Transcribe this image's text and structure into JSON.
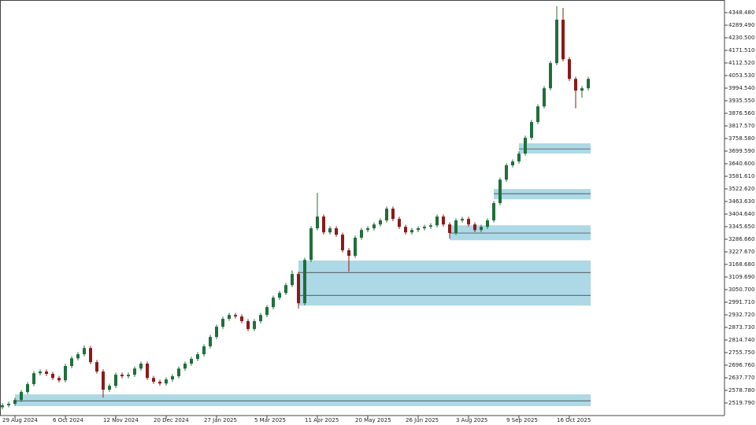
{
  "chart_data": {
    "type": "candlestick",
    "colors": {
      "up": "#1f6f3a",
      "down": "#8b1a1a",
      "zone": "#add8e6",
      "zone_line": "#333333"
    },
    "ylim": [
      2460.8,
      4407.47
    ],
    "yticks": [
      {
        "value": 4348.48,
        "label": "4348.480"
      },
      {
        "value": 4289.49,
        "label": "4289.490"
      },
      {
        "value": 4230.5,
        "label": "4230.500"
      },
      {
        "value": 4171.51,
        "label": "4171.510"
      },
      {
        "value": 4112.52,
        "label": "4112.520"
      },
      {
        "value": 4053.53,
        "label": "4053.530"
      },
      {
        "value": 3994.54,
        "label": "3994.540"
      },
      {
        "value": 3935.55,
        "label": "3935.550"
      },
      {
        "value": 3876.56,
        "label": "3876.560"
      },
      {
        "value": 3817.57,
        "label": "3817.570"
      },
      {
        "value": 3758.58,
        "label": "3758.580"
      },
      {
        "value": 3699.59,
        "label": "3699.590"
      },
      {
        "value": 3640.6,
        "label": "3640.600"
      },
      {
        "value": 3581.61,
        "label": "3581.610"
      },
      {
        "value": 3522.62,
        "label": "3522.620"
      },
      {
        "value": 3463.63,
        "label": "3463.630"
      },
      {
        "value": 3404.64,
        "label": "3404.640"
      },
      {
        "value": 3345.65,
        "label": "3345.650"
      },
      {
        "value": 3286.66,
        "label": "3286.660"
      },
      {
        "value": 3227.67,
        "label": "3227.670"
      },
      {
        "value": 3168.68,
        "label": "3168.680"
      },
      {
        "value": 3109.69,
        "label": "3109.690"
      },
      {
        "value": 3050.7,
        "label": "3050.700"
      },
      {
        "value": 2991.71,
        "label": "2991.710"
      },
      {
        "value": 2932.72,
        "label": "2932.720"
      },
      {
        "value": 2873.73,
        "label": "2873.730"
      },
      {
        "value": 2814.74,
        "label": "2814.740"
      },
      {
        "value": 2755.75,
        "label": "2755.750"
      },
      {
        "value": 2696.76,
        "label": "2696.760"
      },
      {
        "value": 2637.77,
        "label": "2637.770"
      },
      {
        "value": 2578.78,
        "label": "2578.780"
      },
      {
        "value": 2519.79,
        "label": "2519.790"
      }
    ],
    "categories": [
      null,
      null,
      "29 Aug 2024",
      null,
      null,
      null,
      null,
      null,
      null,
      null,
      "6 Oct 2024",
      null,
      null,
      null,
      null,
      null,
      null,
      null,
      "12 Nov 2024",
      null,
      null,
      null,
      null,
      null,
      null,
      null,
      "20 Dec 2024",
      null,
      null,
      null,
      null,
      null,
      null,
      null,
      "27 Jan 2025",
      null,
      null,
      null,
      null,
      null,
      null,
      null,
      "5 Mar 2025",
      null,
      null,
      null,
      null,
      null,
      null,
      null,
      "11 Apr 2025",
      null,
      null,
      null,
      null,
      null,
      null,
      null,
      "20 May 2025",
      null,
      null,
      null,
      null,
      null,
      null,
      null,
      "26 Jun 2025",
      null,
      null,
      null,
      null,
      null,
      null,
      null,
      "3 Aug 2025",
      null,
      null,
      null,
      null,
      null,
      null,
      null,
      "9 Sep 2025",
      null,
      null,
      null,
      null,
      null,
      null,
      null,
      "16 Oct 2025",
      null,
      null,
      null
    ],
    "open": [
      2500,
      2509,
      2516,
      2534,
      2571,
      2608,
      2659,
      2667,
      2656,
      2637,
      2626,
      2693,
      2729,
      2748,
      2777,
      2711,
      2667,
      2582,
      2600,
      2652,
      2645,
      2652,
      2681,
      2704,
      2637,
      2619,
      2611,
      2630,
      2645,
      2681,
      2704,
      2726,
      2748,
      2785,
      2829,
      2877,
      2914,
      2932,
      2925,
      2903,
      2866,
      2903,
      2932,
      2969,
      3013,
      3035,
      3072,
      3124,
      2987,
      3190,
      3338,
      3393,
      3319,
      3338,
      3308,
      3235,
      3209,
      3294,
      3330,
      3338,
      3356,
      3375,
      3430,
      3382,
      3345,
      3319,
      3330,
      3338,
      3345,
      3352,
      3393,
      3356,
      3316,
      3375,
      3382,
      3356,
      3330,
      3345,
      3375,
      3456,
      3566,
      3633,
      3651,
      3688,
      3762,
      3836,
      3909,
      3994,
      4112,
      4315,
      4130,
      4038,
      3983,
      3994
    ],
    "high": [
      2519,
      2526,
      2544,
      2581,
      2618,
      2669,
      2677,
      2677,
      2666,
      2647,
      2703,
      2739,
      2758,
      2790,
      2787,
      2721,
      2677,
      2610,
      2662,
      2662,
      2662,
      2691,
      2714,
      2714,
      2647,
      2629,
      2640,
      2655,
      2691,
      2714,
      2736,
      2758,
      2795,
      2839,
      2887,
      2924,
      2942,
      2942,
      2935,
      2913,
      2913,
      2942,
      2979,
      3023,
      3045,
      3082,
      3140,
      3134,
      3200,
      3348,
      3504,
      3403,
      3348,
      3348,
      3318,
      3245,
      3304,
      3340,
      3348,
      3366,
      3385,
      3440,
      3440,
      3392,
      3355,
      3340,
      3348,
      3355,
      3362,
      3403,
      3403,
      3366,
      3385,
      3392,
      3392,
      3366,
      3355,
      3385,
      3466,
      3576,
      3643,
      3661,
      3698,
      3772,
      3846,
      3919,
      4004,
      4122,
      4378,
      4370,
      4140,
      4048,
      4004,
      4048
    ],
    "low": [
      2490,
      2499,
      2506,
      2524,
      2561,
      2598,
      2649,
      2646,
      2627,
      2616,
      2616,
      2683,
      2719,
      2738,
      2701,
      2657,
      2545,
      2572,
      2590,
      2635,
      2635,
      2642,
      2671,
      2627,
      2609,
      2601,
      2601,
      2620,
      2635,
      2671,
      2694,
      2716,
      2738,
      2775,
      2819,
      2867,
      2904,
      2915,
      2893,
      2856,
      2856,
      2893,
      2922,
      2959,
      3003,
      3025,
      3062,
      2962,
      2977,
      3180,
      3328,
      3309,
      3309,
      3298,
      3225,
      3135,
      3199,
      3284,
      3320,
      3328,
      3346,
      3365,
      3372,
      3335,
      3309,
      3309,
      3320,
      3328,
      3335,
      3342,
      3346,
      3290,
      3306,
      3365,
      3346,
      3320,
      3320,
      3335,
      3365,
      3446,
      3556,
      3623,
      3641,
      3678,
      3752,
      3826,
      3899,
      3984,
      4102,
      4120,
      4028,
      3900,
      3950,
      3984
    ],
    "close": [
      2509,
      2516,
      2534,
      2571,
      2608,
      2659,
      2667,
      2656,
      2637,
      2626,
      2693,
      2729,
      2748,
      2777,
      2711,
      2667,
      2582,
      2600,
      2652,
      2645,
      2652,
      2681,
      2704,
      2637,
      2619,
      2611,
      2630,
      2645,
      2681,
      2704,
      2726,
      2748,
      2785,
      2829,
      2877,
      2914,
      2932,
      2925,
      2903,
      2866,
      2903,
      2932,
      2969,
      3013,
      3035,
      3072,
      3124,
      2987,
      3190,
      3338,
      3393,
      3319,
      3338,
      3308,
      3235,
      3209,
      3294,
      3330,
      3338,
      3356,
      3375,
      3430,
      3382,
      3345,
      3319,
      3330,
      3338,
      3345,
      3352,
      3393,
      3356,
      3316,
      3375,
      3382,
      3356,
      3330,
      3345,
      3375,
      3456,
      3566,
      3633,
      3651,
      3688,
      3762,
      3836,
      3909,
      3994,
      4112,
      4315,
      4130,
      4038,
      3983,
      3994,
      4038
    ],
    "zones": [
      {
        "from": 2,
        "top": 2560,
        "bottom": 2505,
        "levels": [
          2530
        ]
      },
      {
        "from": 47,
        "top": 3187,
        "bottom": 2976,
        "levels": [
          3131,
          3024
        ]
      },
      {
        "from": 71,
        "top": 3352,
        "bottom": 3282,
        "levels": [
          3316
        ]
      },
      {
        "from": 78,
        "top": 3522,
        "bottom": 3474,
        "levels": [
          3500
        ]
      },
      {
        "from": 82,
        "top": 3736,
        "bottom": 3688,
        "levels": [
          3710
        ]
      }
    ]
  }
}
